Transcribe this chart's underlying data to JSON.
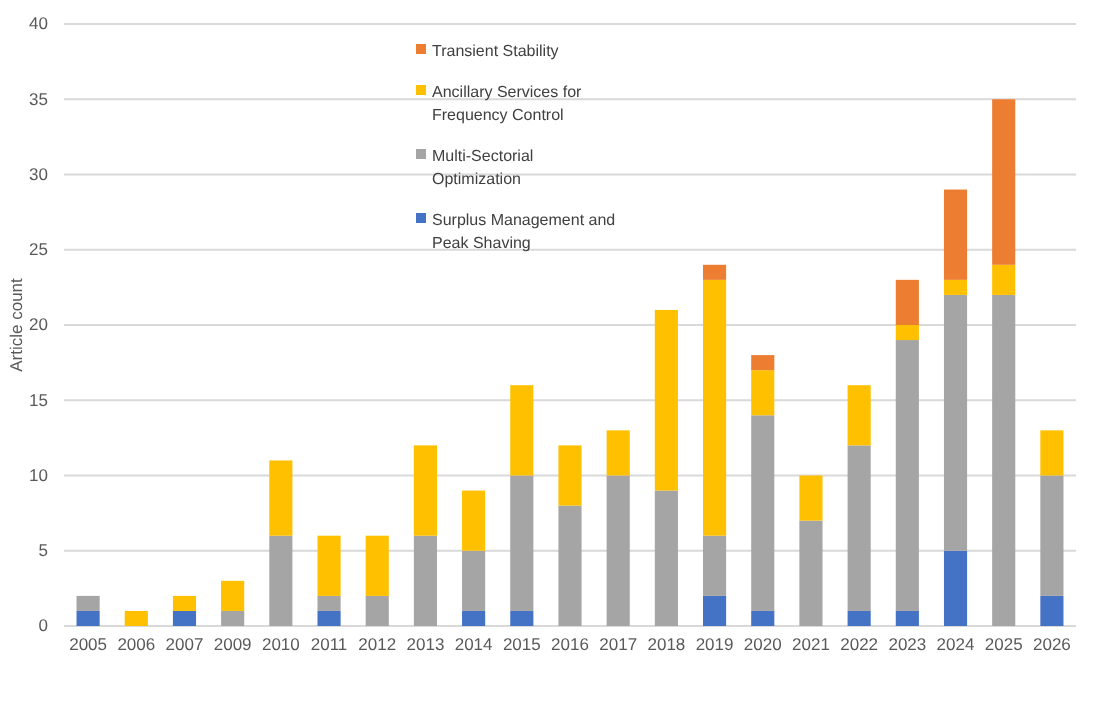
{
  "chart_data": {
    "type": "bar",
    "stacked": true,
    "ylabel": "Article count",
    "categories": [
      "2005",
      "2006",
      "2007",
      "2009",
      "2010",
      "2011",
      "2012",
      "2013",
      "2014",
      "2015",
      "2016",
      "2017",
      "2018",
      "2019",
      "2020",
      "2021",
      "2022",
      "2023",
      "2024",
      "2025",
      "2026"
    ],
    "series": [
      {
        "name": "Surplus Management and Peak Shaving",
        "color": "#4472c4",
        "values": [
          1,
          0,
          1,
          0,
          0,
          1,
          0,
          0,
          1,
          1,
          0,
          0,
          0,
          2,
          1,
          0,
          1,
          1,
          5,
          0,
          2
        ]
      },
      {
        "name": "Multi-Sectorial Optimization",
        "color": "#a5a5a5",
        "values": [
          1,
          0,
          0,
          1,
          6,
          1,
          2,
          6,
          4,
          9,
          8,
          10,
          9,
          4,
          13,
          7,
          11,
          18,
          17,
          22,
          8
        ]
      },
      {
        "name": "Ancillary Services for Frequency Control",
        "color": "#ffc000",
        "values": [
          0,
          1,
          1,
          2,
          5,
          4,
          4,
          6,
          4,
          6,
          4,
          3,
          12,
          17,
          3,
          3,
          4,
          1,
          1,
          2,
          3
        ]
      },
      {
        "name": "Transient Stability",
        "color": "#ed7d31",
        "values": [
          0,
          0,
          0,
          0,
          0,
          0,
          0,
          0,
          0,
          0,
          0,
          0,
          0,
          1,
          1,
          0,
          0,
          3,
          6,
          11,
          0
        ]
      }
    ],
    "ylim": [
      0,
      40
    ],
    "yticks": [
      0,
      5,
      10,
      15,
      20,
      25,
      30,
      35,
      40
    ],
    "grid": "y",
    "legend": "top"
  }
}
